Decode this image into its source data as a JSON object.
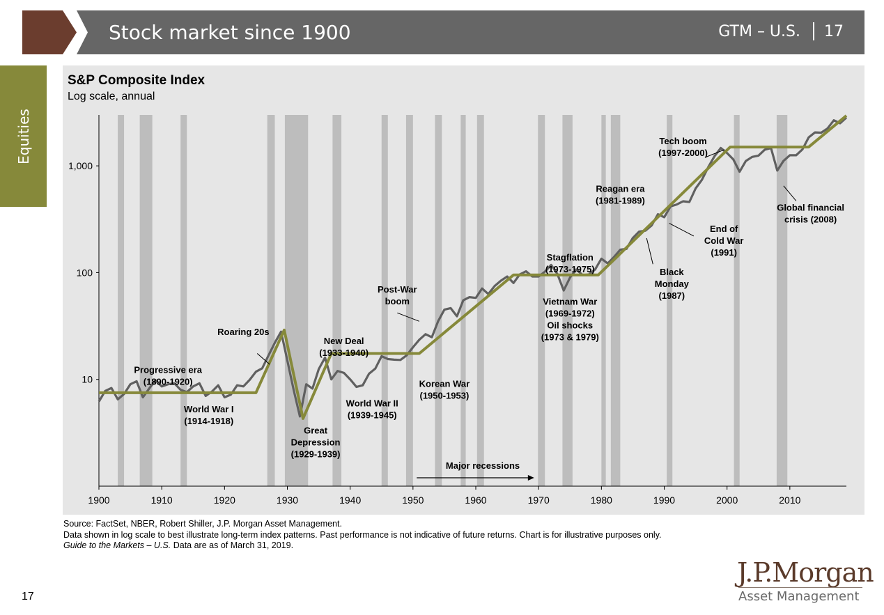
{
  "header": {
    "title": "Stock market since 1900",
    "section": "GTM – U.S.",
    "page": "17",
    "brown": "#6b3d2e",
    "bar": "#666666"
  },
  "side_tab": {
    "label": "Equities",
    "color": "#86893a"
  },
  "chart_data": {
    "type": "line",
    "title": "S&P Composite Index",
    "subtitle": "Log scale, annual",
    "y_scale": "log",
    "xlim": [
      1900,
      2019
    ],
    "ylim": [
      1.0,
      3000
    ],
    "x_ticks": [
      1900,
      1910,
      1920,
      1930,
      1940,
      1950,
      1960,
      1970,
      1980,
      1990,
      2000,
      2010
    ],
    "y_ticks": [
      {
        "value": 10,
        "label": "10"
      },
      {
        "value": 100,
        "label": "100"
      },
      {
        "value": 1000,
        "label": "1,000"
      }
    ],
    "recessions": [
      [
        1903.0,
        1904.0
      ],
      [
        1906.5,
        1908.5
      ],
      [
        1913.0,
        1914.0
      ],
      [
        1926.8,
        1928.0
      ],
      [
        1929.6,
        1933.3
      ],
      [
        1937.2,
        1938.6
      ],
      [
        1945.0,
        1946.0
      ],
      [
        1948.9,
        1950.0
      ],
      [
        1953.5,
        1954.6
      ],
      [
        1957.6,
        1958.4
      ],
      [
        1960.2,
        1961.3
      ],
      [
        1969.9,
        1971.0
      ],
      [
        1973.8,
        1975.4
      ],
      [
        1980.0,
        1980.7
      ],
      [
        1981.5,
        1983.0
      ],
      [
        1990.4,
        1991.3
      ],
      [
        2001.1,
        2002.0
      ],
      [
        2007.9,
        2009.6
      ]
    ],
    "series": [
      {
        "values_desc": "index",
        "points": [
          [
            1900,
            6.2
          ],
          [
            1901,
            7.8
          ],
          [
            1902,
            8.3
          ],
          [
            1903,
            6.5
          ],
          [
            1904,
            7.3
          ],
          [
            1905,
            9.0
          ],
          [
            1906,
            9.6
          ],
          [
            1907,
            6.8
          ],
          [
            1908,
            8.2
          ],
          [
            1909,
            9.8
          ],
          [
            1910,
            8.6
          ],
          [
            1911,
            9.0
          ],
          [
            1912,
            9.2
          ],
          [
            1913,
            8.0
          ],
          [
            1914,
            7.6
          ],
          [
            1915,
            8.6
          ],
          [
            1916,
            9.2
          ],
          [
            1917,
            7.0
          ],
          [
            1918,
            7.7
          ],
          [
            1919,
            8.8
          ],
          [
            1920,
            6.8
          ],
          [
            1921,
            7.2
          ],
          [
            1922,
            8.8
          ],
          [
            1923,
            8.6
          ],
          [
            1924,
            9.9
          ],
          [
            1925,
            11.8
          ],
          [
            1926,
            12.7
          ],
          [
            1927,
            16.8
          ],
          [
            1928,
            22.0
          ],
          [
            1929,
            28.0
          ],
          [
            1930,
            15.0
          ],
          [
            1931,
            8.0
          ],
          [
            1932,
            4.5
          ],
          [
            1933,
            9.0
          ],
          [
            1934,
            8.2
          ],
          [
            1935,
            12.5
          ],
          [
            1936,
            16.0
          ],
          [
            1937,
            10.0
          ],
          [
            1938,
            12.0
          ],
          [
            1939,
            11.5
          ],
          [
            1940,
            10.0
          ],
          [
            1941,
            8.5
          ],
          [
            1942,
            8.8
          ],
          [
            1943,
            11.3
          ],
          [
            1944,
            12.6
          ],
          [
            1945,
            16.5
          ],
          [
            1946,
            15.5
          ],
          [
            1947,
            15.3
          ],
          [
            1948,
            15.2
          ],
          [
            1949,
            16.8
          ],
          [
            1950,
            20.0
          ],
          [
            1951,
            23.5
          ],
          [
            1952,
            26.5
          ],
          [
            1953,
            24.8
          ],
          [
            1954,
            35.0
          ],
          [
            1955,
            45.0
          ],
          [
            1956,
            46.5
          ],
          [
            1957,
            39.0
          ],
          [
            1958,
            55.0
          ],
          [
            1959,
            59.0
          ],
          [
            1960,
            58.0
          ],
          [
            1961,
            71.0
          ],
          [
            1962,
            63.0
          ],
          [
            1963,
            75.0
          ],
          [
            1964,
            84.0
          ],
          [
            1965,
            92.0
          ],
          [
            1966,
            80.0
          ],
          [
            1967,
            96.0
          ],
          [
            1968,
            103.0
          ],
          [
            1969,
            92.0
          ],
          [
            1970,
            92.0
          ],
          [
            1971,
            102.0
          ],
          [
            1972,
            118.0
          ],
          [
            1973,
            97.0
          ],
          [
            1974,
            68.0
          ],
          [
            1975,
            90.0
          ],
          [
            1976,
            107.0
          ],
          [
            1977,
            95.0
          ],
          [
            1978,
            96.0
          ],
          [
            1979,
            107.0
          ],
          [
            1980,
            135.0
          ],
          [
            1981,
            122.0
          ],
          [
            1982,
            140.0
          ],
          [
            1983,
            164.0
          ],
          [
            1984,
            167.0
          ],
          [
            1985,
            211.0
          ],
          [
            1986,
            242.0
          ],
          [
            1987,
            247.0
          ],
          [
            1988,
            277.0
          ],
          [
            1989,
            353.0
          ],
          [
            1990,
            330.0
          ],
          [
            1991,
            417.0
          ],
          [
            1992,
            435.0
          ],
          [
            1993,
            466.0
          ],
          [
            1994,
            459.0
          ],
          [
            1995,
            615.0
          ],
          [
            1996,
            740.0
          ],
          [
            1997,
            970.0
          ],
          [
            1998,
            1229.0
          ],
          [
            1999,
            1469.0
          ],
          [
            2000,
            1320.0
          ],
          [
            2001,
            1148.0
          ],
          [
            2002,
            880.0
          ],
          [
            2003,
            1112.0
          ],
          [
            2004,
            1212.0
          ],
          [
            2005,
            1248.0
          ],
          [
            2006,
            1418.0
          ],
          [
            2007,
            1468.0
          ],
          [
            2008,
            903.0
          ],
          [
            2009,
            1115.0
          ],
          [
            2010,
            1258.0
          ],
          [
            2011,
            1258.0
          ],
          [
            2012,
            1426.0
          ],
          [
            2013,
            1848.0
          ],
          [
            2014,
            2059.0
          ],
          [
            2015,
            2044.0
          ],
          [
            2016,
            2239.0
          ],
          [
            2017,
            2674.0
          ],
          [
            2018,
            2507.0
          ],
          [
            2019,
            2834.0
          ]
        ],
        "color": "#606060"
      },
      {
        "values_desc": "trend",
        "points": [
          [
            1900,
            7.5
          ],
          [
            1925,
            7.5
          ],
          [
            1929.5,
            29.0
          ],
          [
            1932.5,
            4.3
          ],
          [
            1937,
            17.5
          ],
          [
            1951,
            17.5
          ],
          [
            1966,
            95.0
          ],
          [
            1979.5,
            95.0
          ],
          [
            2000.5,
            1500.0
          ],
          [
            2013,
            1500.0
          ],
          [
            2019,
            2950.0
          ]
        ],
        "color": "#86893a"
      }
    ],
    "annotations": [
      {
        "lines": [
          "Progressive era",
          "(1890-1920)"
        ],
        "x": 1911,
        "y": 11.5
      },
      {
        "lines": [
          "World War I",
          "(1914-1918)"
        ],
        "x": 1917.5,
        "y": 4.9
      },
      {
        "lines": [
          "Roaring 20s"
        ],
        "x": 1923,
        "y": 26.0
      },
      {
        "lines": [
          "Great",
          "Depression",
          "(1929-1939)"
        ],
        "x": 1934.5,
        "y": 3.1
      },
      {
        "lines": [
          "New Deal",
          "(1933-1940)"
        ],
        "x": 1939,
        "y": 21.5
      },
      {
        "lines": [
          "World War II",
          "(1939-1945)"
        ],
        "x": 1943.5,
        "y": 5.6
      },
      {
        "lines": [
          "Post-War",
          "boom"
        ],
        "x": 1947.5,
        "y": 65.0
      },
      {
        "lines": [
          "Korean War",
          "(1950-1953)"
        ],
        "x": 1955,
        "y": 8.5
      },
      {
        "lines": [
          "Stagflation",
          "(1973-1975)"
        ],
        "x": 1975,
        "y": 130.0
      },
      {
        "lines": [
          "Vietnam War",
          "(1969-1972)",
          "Oil shocks",
          "(1973 & 1979)"
        ],
        "x": 1975,
        "y": 50.0
      },
      {
        "lines": [
          "Reagan era",
          "(1981-1989)"
        ],
        "x": 1983,
        "y": 570.0
      },
      {
        "lines": [
          "Black",
          "Monday",
          "(1987)"
        ],
        "x": 1991.2,
        "y": 95.0
      },
      {
        "lines": [
          "End of",
          "Cold War",
          "(1991)"
        ],
        "x": 1999.5,
        "y": 240.0
      },
      {
        "lines": [
          "Tech boom",
          "(1997-2000)"
        ],
        "x": 1993,
        "y": 1600.0
      },
      {
        "lines": [
          "Global financial",
          "crisis (2008)"
        ],
        "x": 2013.3,
        "y": 380.0
      }
    ],
    "major_recessions": {
      "label": "Major recessions"
    }
  },
  "footer": {
    "source": "Source: FactSet, NBER, Robert Shiller, J.P. Morgan Asset Management.",
    "note": "Data shown in log scale to best illustrate long-term index patterns. Past performance is not indicative of future returns. Chart is for illustrative purposes only.",
    "guide_italic": "Guide to the Markets – U.S.",
    "guide_rest": " Data are as of March 31, 2019."
  },
  "page_number": "17",
  "logo": {
    "main": "J.P.Morgan",
    "sub": "Asset Management"
  }
}
